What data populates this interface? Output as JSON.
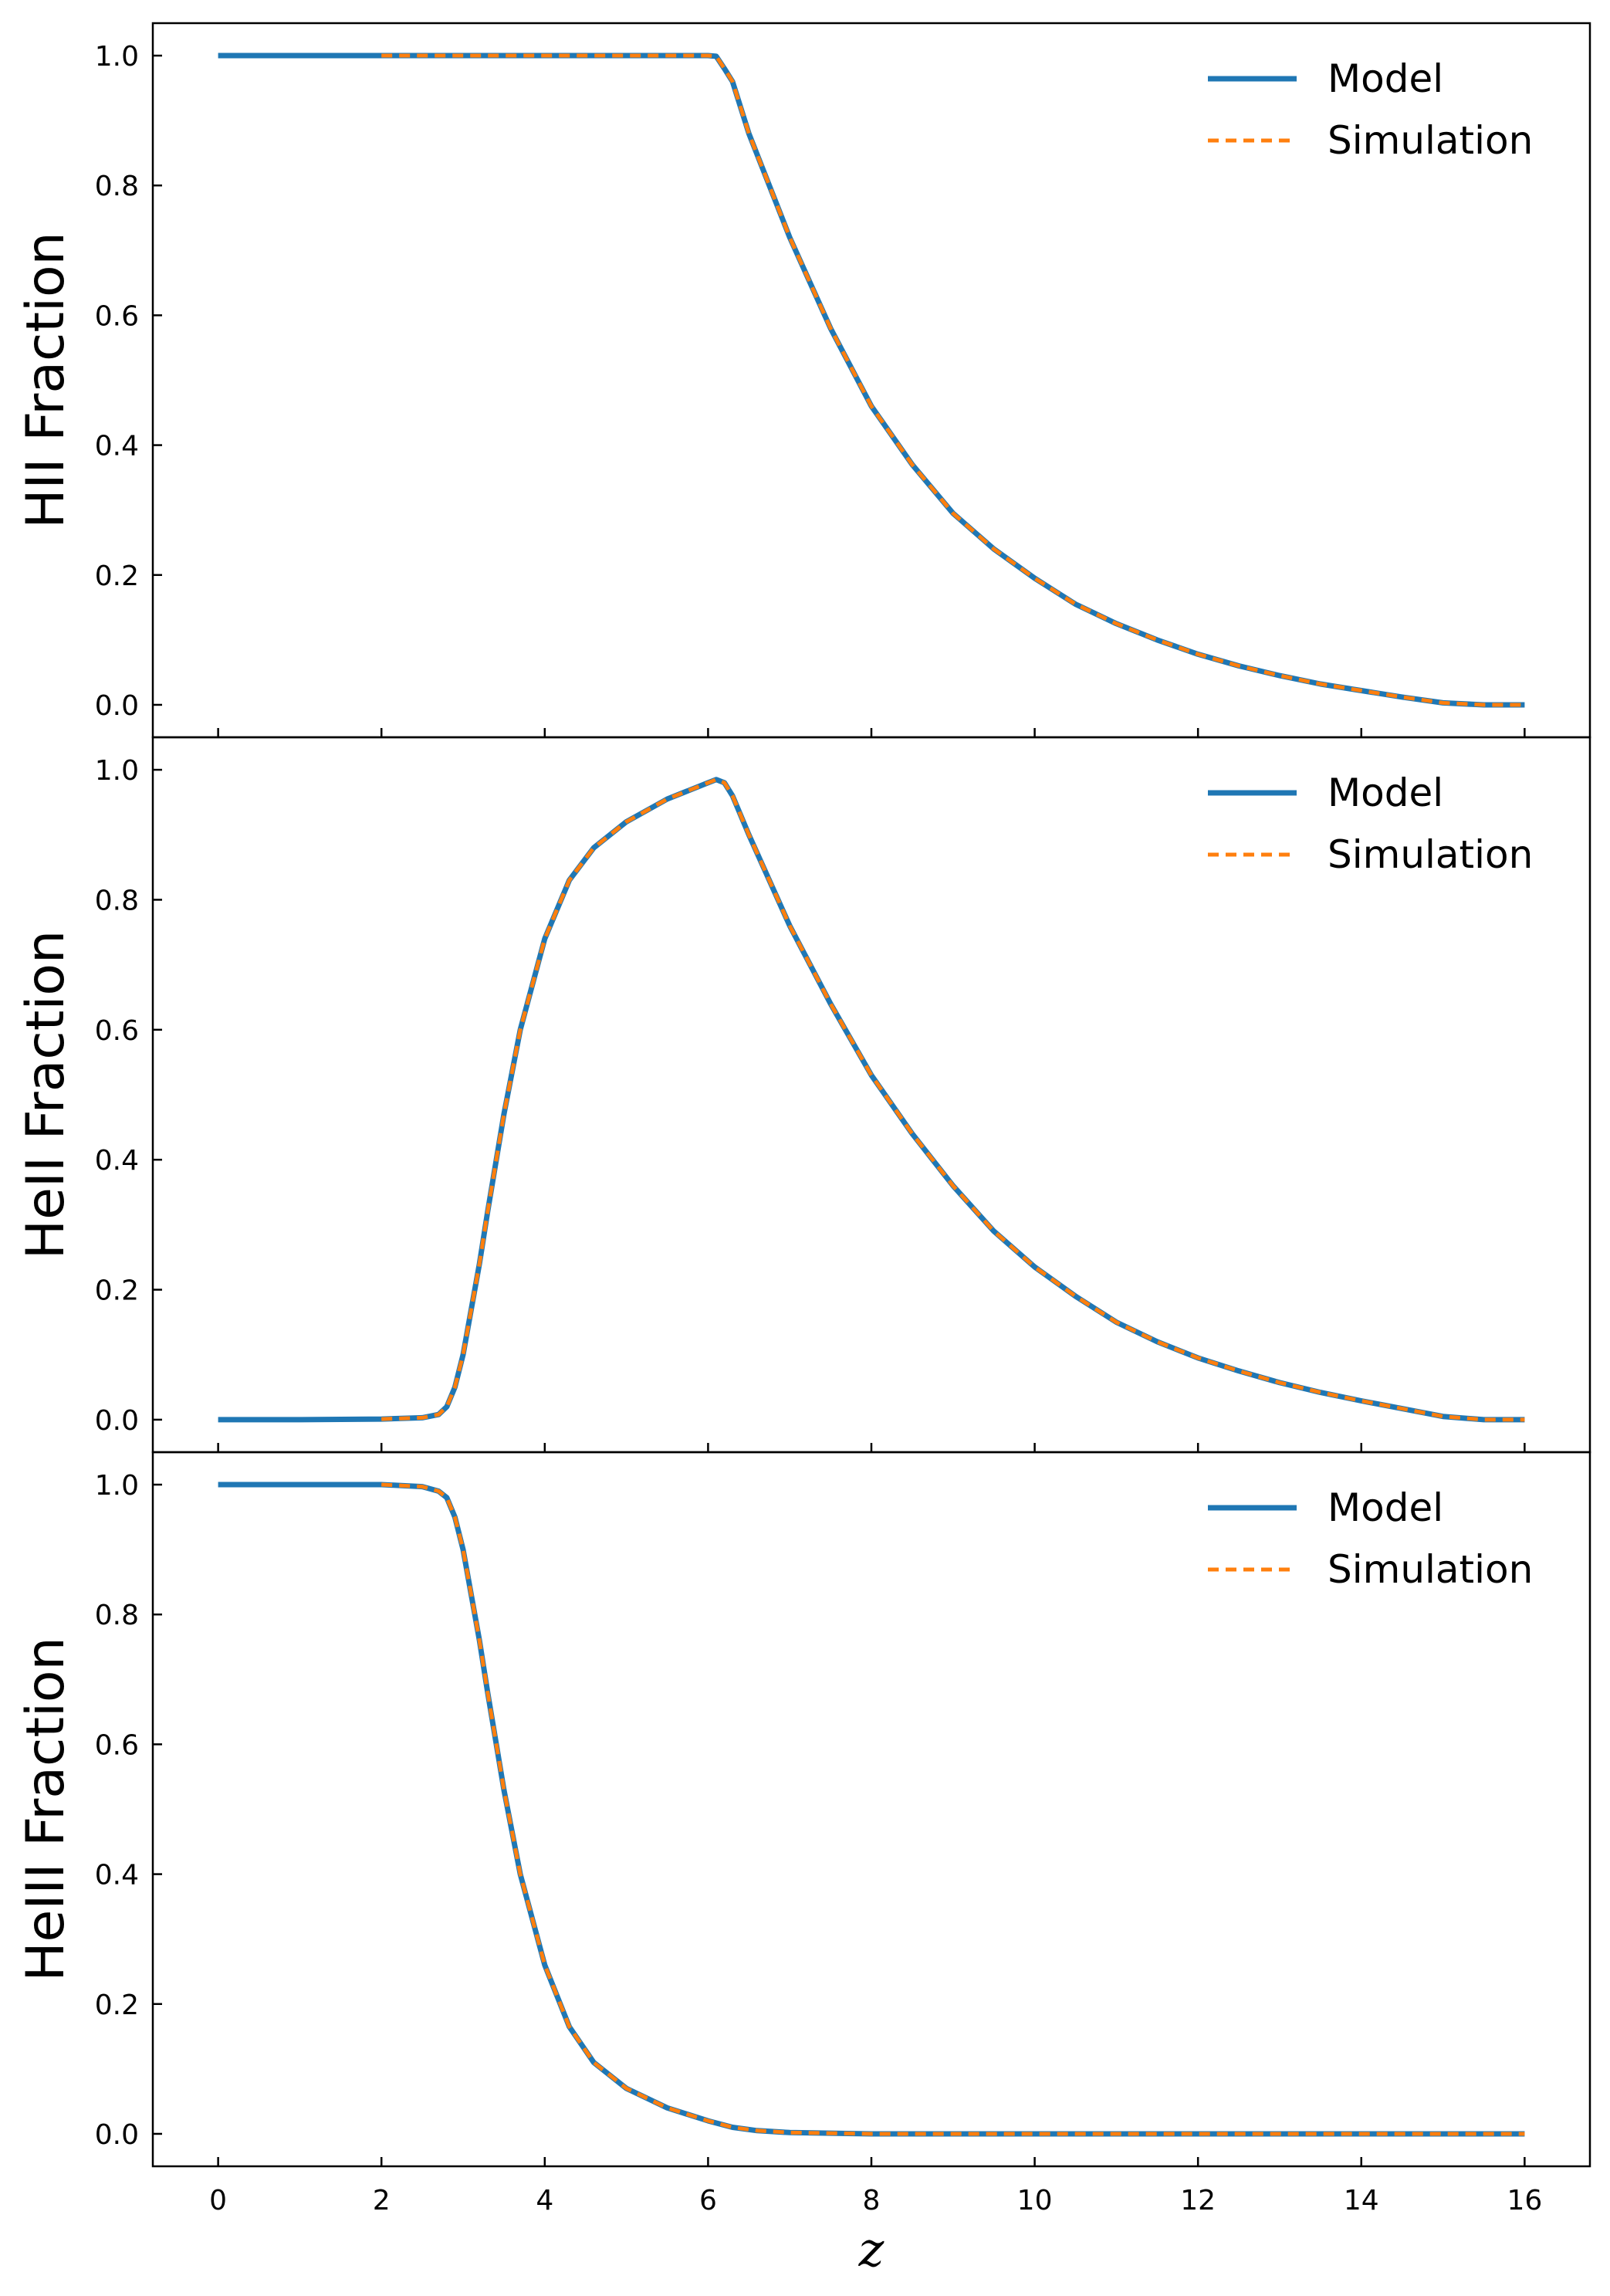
{
  "colors": {
    "model": "#1f77b4",
    "simulation": "#ff7f0e",
    "axes": "#000000"
  },
  "chart_data": [
    {
      "type": "line",
      "ylabel": "HII Fraction",
      "xlabel": "",
      "xlim": [
        -0.8,
        16.8
      ],
      "ylim": [
        -0.05,
        1.05
      ],
      "xticks": [
        0,
        2,
        4,
        6,
        8,
        10,
        12,
        14,
        16
      ],
      "yticks": [
        0.0,
        0.2,
        0.4,
        0.6,
        0.8,
        1.0
      ],
      "ytick_labels": [
        "0.0",
        "0.2",
        "0.4",
        "0.6",
        "0.8",
        "1.0"
      ],
      "legend": {
        "position": "top-right",
        "entries": [
          "Model",
          "Simulation"
        ]
      },
      "series": [
        {
          "name": "Model",
          "style": "solid",
          "x": [
            0,
            1,
            2,
            3,
            4,
            5,
            5.5,
            6.0,
            6.1,
            6.2,
            6.3,
            6.5,
            7.0,
            7.5,
            8.0,
            8.5,
            9.0,
            9.5,
            10.0,
            10.5,
            11.0,
            11.5,
            12.0,
            12.5,
            13.0,
            13.5,
            14.0,
            14.5,
            15.0,
            15.5,
            16.0
          ],
          "y": [
            1.0,
            1.0,
            1.0,
            1.0,
            1.0,
            1.0,
            1.0,
            1.0,
            0.999,
            0.98,
            0.96,
            0.88,
            0.72,
            0.58,
            0.46,
            0.37,
            0.295,
            0.24,
            0.195,
            0.155,
            0.125,
            0.1,
            0.078,
            0.06,
            0.045,
            0.032,
            0.022,
            0.012,
            0.003,
            0.0,
            0.0
          ]
        },
        {
          "name": "Simulation",
          "style": "dashed",
          "x": [
            2,
            3,
            4,
            5,
            5.5,
            6.0,
            6.1,
            6.2,
            6.3,
            6.5,
            7.0,
            7.5,
            8.0,
            8.5,
            9.0,
            9.5,
            10.0,
            10.5,
            11.0,
            11.5,
            12.0,
            12.5,
            13.0,
            13.5,
            14.0,
            14.5,
            15.0,
            15.5,
            16.0
          ],
          "y": [
            1.0,
            1.0,
            1.0,
            1.0,
            1.0,
            1.0,
            0.999,
            0.98,
            0.96,
            0.88,
            0.72,
            0.58,
            0.46,
            0.37,
            0.295,
            0.24,
            0.195,
            0.155,
            0.125,
            0.1,
            0.078,
            0.06,
            0.045,
            0.032,
            0.022,
            0.012,
            0.003,
            0.0,
            0.0
          ]
        }
      ]
    },
    {
      "type": "line",
      "ylabel": "HeII Fraction",
      "xlabel": "",
      "xlim": [
        -0.8,
        16.8
      ],
      "ylim": [
        -0.05,
        1.05
      ],
      "xticks": [
        0,
        2,
        4,
        6,
        8,
        10,
        12,
        14,
        16
      ],
      "yticks": [
        0.0,
        0.2,
        0.4,
        0.6,
        0.8,
        1.0
      ],
      "ytick_labels": [
        "0.0",
        "0.2",
        "0.4",
        "0.6",
        "0.8",
        "1.0"
      ],
      "legend": {
        "position": "top-right",
        "entries": [
          "Model",
          "Simulation"
        ]
      },
      "series": [
        {
          "name": "Model",
          "style": "solid",
          "x": [
            0,
            1,
            2,
            2.5,
            2.7,
            2.8,
            2.9,
            3.0,
            3.1,
            3.2,
            3.3,
            3.5,
            3.7,
            4.0,
            4.3,
            4.6,
            5.0,
            5.5,
            6.0,
            6.1,
            6.2,
            6.3,
            6.5,
            7.0,
            7.5,
            8.0,
            8.5,
            9.0,
            9.5,
            10.0,
            10.5,
            11.0,
            11.5,
            12.0,
            12.5,
            13.0,
            13.5,
            14.0,
            14.5,
            15.0,
            15.5,
            16.0
          ],
          "y": [
            0.0,
            0.0,
            0.001,
            0.003,
            0.008,
            0.02,
            0.05,
            0.1,
            0.17,
            0.24,
            0.32,
            0.47,
            0.6,
            0.74,
            0.83,
            0.88,
            0.92,
            0.955,
            0.98,
            0.985,
            0.98,
            0.96,
            0.9,
            0.76,
            0.64,
            0.53,
            0.44,
            0.36,
            0.29,
            0.235,
            0.19,
            0.15,
            0.12,
            0.095,
            0.075,
            0.057,
            0.042,
            0.029,
            0.017,
            0.005,
            0.0,
            0.0
          ]
        },
        {
          "name": "Simulation",
          "style": "dashed",
          "x": [
            2,
            2.5,
            2.7,
            2.8,
            2.9,
            3.0,
            3.1,
            3.2,
            3.3,
            3.5,
            3.7,
            4.0,
            4.3,
            4.6,
            5.0,
            5.5,
            6.0,
            6.1,
            6.2,
            6.3,
            6.5,
            7.0,
            7.5,
            8.0,
            8.5,
            9.0,
            9.5,
            10.0,
            10.5,
            11.0,
            11.5,
            12.0,
            12.5,
            13.0,
            13.5,
            14.0,
            14.5,
            15.0,
            15.5,
            16.0
          ],
          "y": [
            0.001,
            0.003,
            0.008,
            0.02,
            0.05,
            0.1,
            0.17,
            0.24,
            0.32,
            0.47,
            0.6,
            0.74,
            0.83,
            0.88,
            0.92,
            0.955,
            0.98,
            0.985,
            0.98,
            0.96,
            0.9,
            0.76,
            0.64,
            0.53,
            0.44,
            0.36,
            0.29,
            0.235,
            0.19,
            0.15,
            0.12,
            0.095,
            0.075,
            0.057,
            0.042,
            0.029,
            0.017,
            0.005,
            0.0,
            0.0
          ]
        }
      ]
    },
    {
      "type": "line",
      "ylabel": "HeIII Fraction",
      "xlabel": "z",
      "xlim": [
        -0.8,
        16.8
      ],
      "ylim": [
        -0.05,
        1.05
      ],
      "xticks": [
        0,
        2,
        4,
        6,
        8,
        10,
        12,
        14,
        16
      ],
      "xtick_labels": [
        "0",
        "2",
        "4",
        "6",
        "8",
        "10",
        "12",
        "14",
        "16"
      ],
      "yticks": [
        0.0,
        0.2,
        0.4,
        0.6,
        0.8,
        1.0
      ],
      "ytick_labels": [
        "0.0",
        "0.2",
        "0.4",
        "0.6",
        "0.8",
        "1.0"
      ],
      "legend": {
        "position": "top-right",
        "entries": [
          "Model",
          "Simulation"
        ]
      },
      "series": [
        {
          "name": "Model",
          "style": "solid",
          "x": [
            0,
            1,
            2,
            2.5,
            2.7,
            2.8,
            2.9,
            3.0,
            3.1,
            3.2,
            3.3,
            3.5,
            3.7,
            4.0,
            4.3,
            4.6,
            5.0,
            5.5,
            6.0,
            6.3,
            6.6,
            7.0,
            8.0,
            10.0,
            12.0,
            14.0,
            16.0
          ],
          "y": [
            1.0,
            1.0,
            1.0,
            0.997,
            0.99,
            0.98,
            0.95,
            0.9,
            0.83,
            0.76,
            0.68,
            0.53,
            0.4,
            0.26,
            0.165,
            0.11,
            0.07,
            0.04,
            0.02,
            0.01,
            0.005,
            0.002,
            0.0,
            0.0,
            0.0,
            0.0,
            0.0
          ]
        },
        {
          "name": "Simulation",
          "style": "dashed",
          "x": [
            2,
            2.5,
            2.7,
            2.8,
            2.9,
            3.0,
            3.1,
            3.2,
            3.3,
            3.5,
            3.7,
            4.0,
            4.3,
            4.6,
            5.0,
            5.5,
            6.0,
            6.3,
            6.6,
            7.0,
            8.0,
            10.0,
            12.0,
            14.0,
            16.0
          ],
          "y": [
            1.0,
            0.997,
            0.99,
            0.98,
            0.95,
            0.9,
            0.83,
            0.76,
            0.68,
            0.53,
            0.4,
            0.26,
            0.165,
            0.11,
            0.07,
            0.04,
            0.02,
            0.01,
            0.005,
            0.002,
            0.0,
            0.0,
            0.0,
            0.0,
            0.0
          ]
        }
      ]
    }
  ]
}
